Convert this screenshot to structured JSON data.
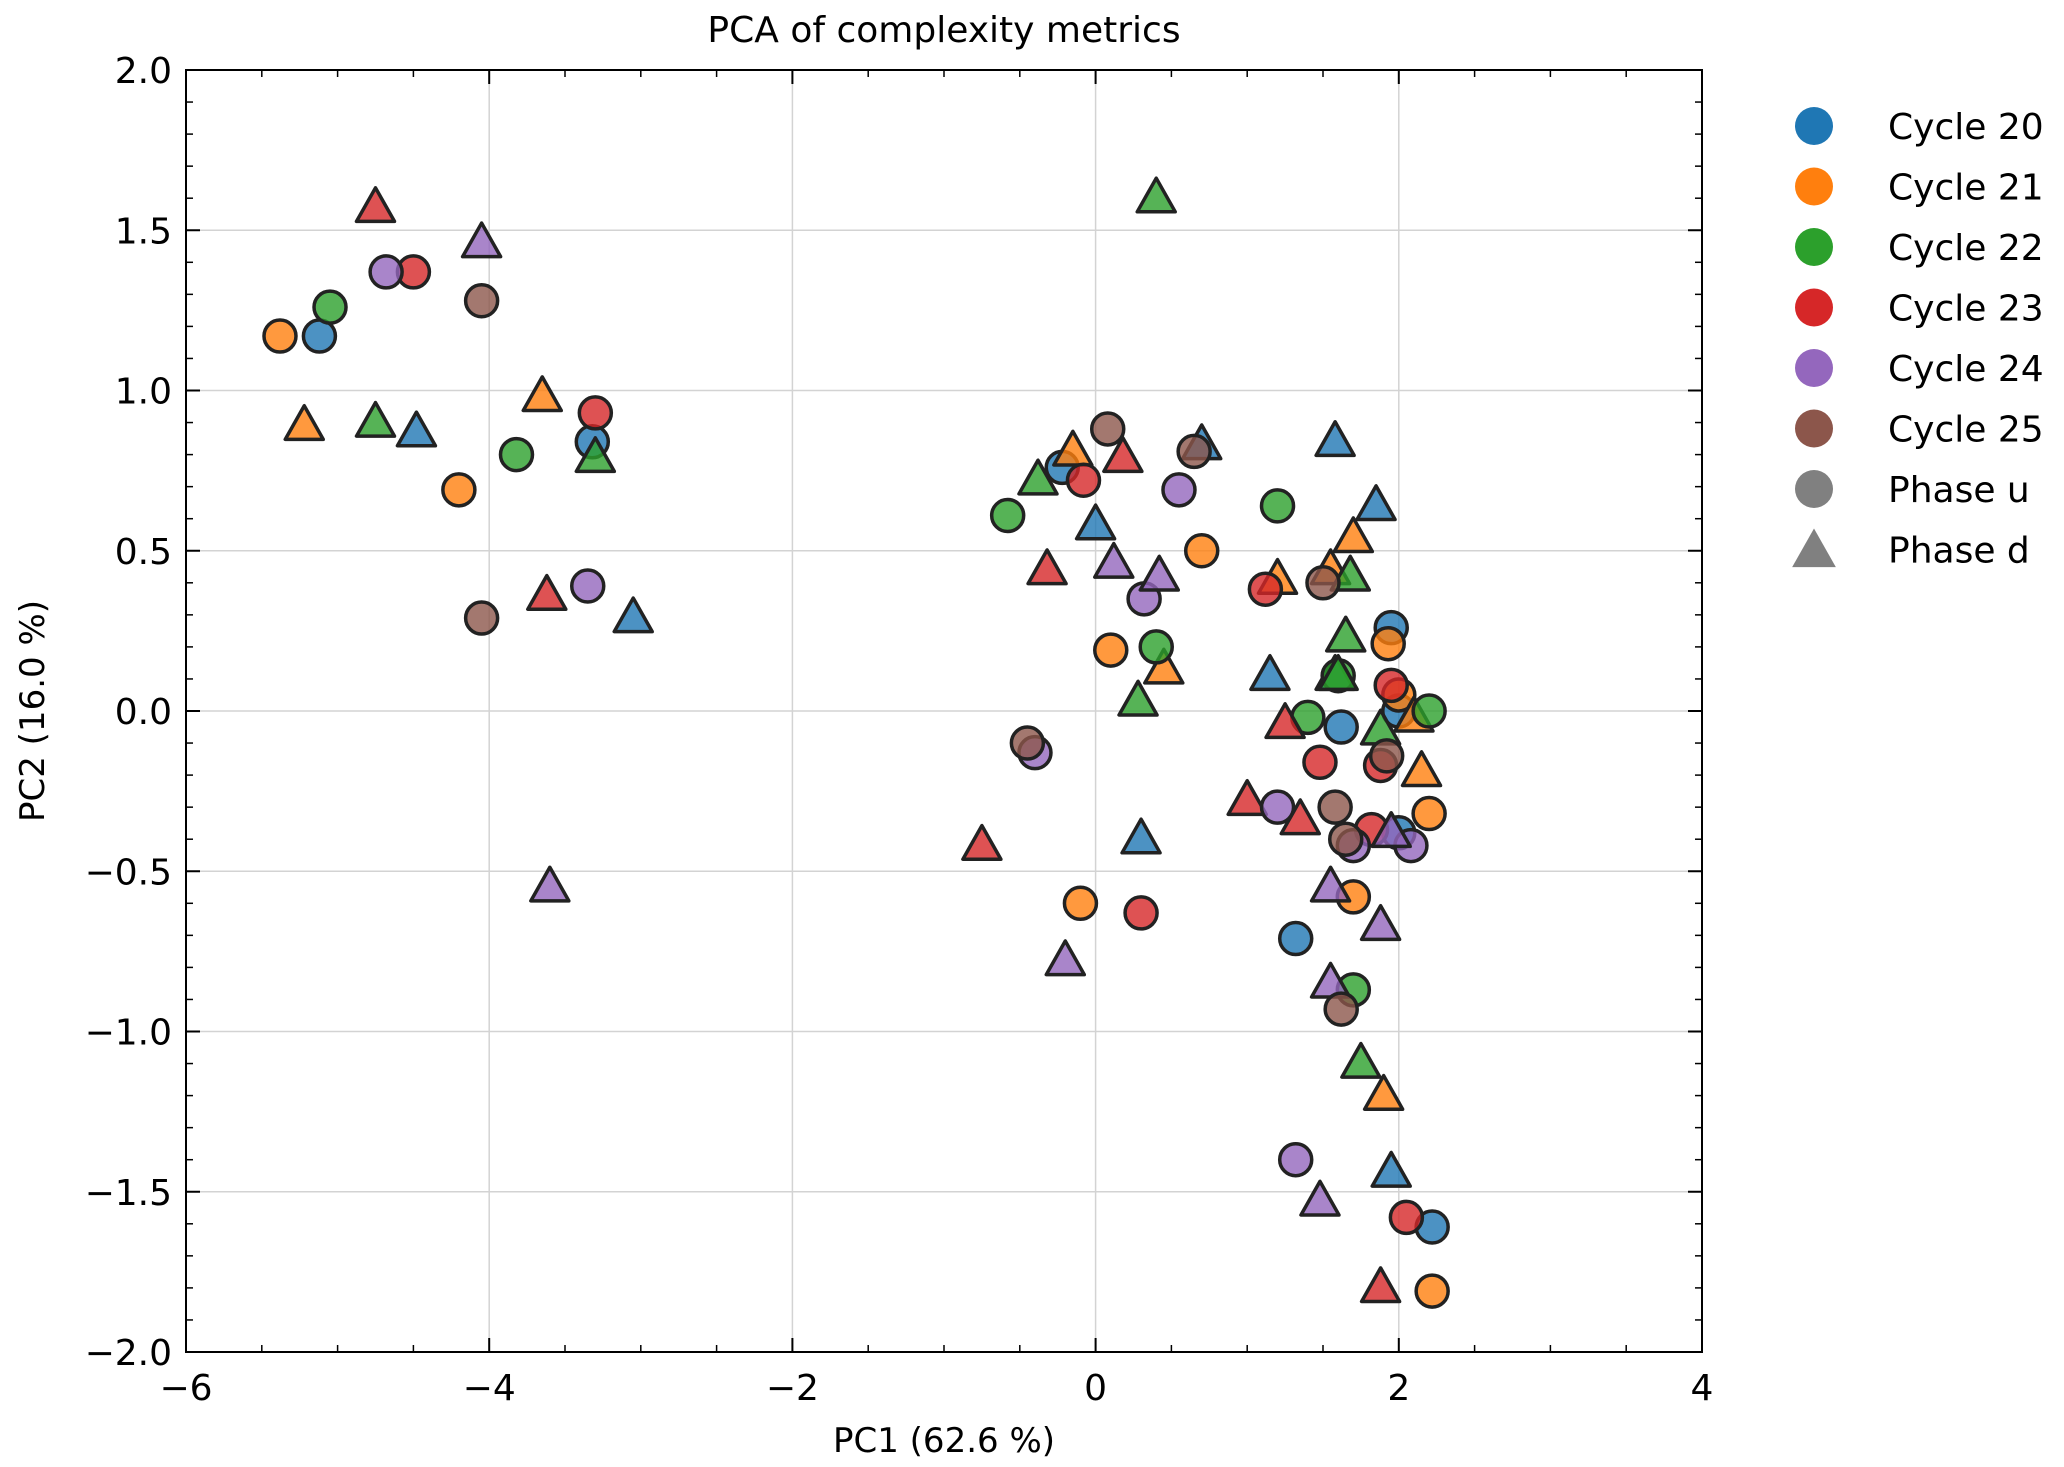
{
  "chart_data": {
    "type": "scatter",
    "title": "PCA of complexity metrics",
    "xlabel": "PC1 (62.6 %)",
    "ylabel": "PC2 (16.0 %)",
    "xlim": [
      -6,
      4
    ],
    "ylim": [
      -2.0,
      2.0
    ],
    "xticks": [
      -6,
      -4,
      -2,
      0,
      2,
      4
    ],
    "xtick_labels": [
      "−6",
      "−4",
      "−2",
      "0",
      "2",
      "4"
    ],
    "yticks": [
      -2.0,
      -1.5,
      -1.0,
      -0.5,
      0.0,
      0.5,
      1.0,
      1.5,
      2.0
    ],
    "ytick_labels": [
      "−2.0",
      "−1.5",
      "−1.0",
      "−0.5",
      "0.0",
      "0.5",
      "1.0",
      "1.5",
      "2.0"
    ],
    "grid": true,
    "legend_position": "outside-right",
    "legend": {
      "cycles": [
        {
          "label": "Cycle 20",
          "color": "#1f77b4"
        },
        {
          "label": "Cycle 21",
          "color": "#ff7f0e"
        },
        {
          "label": "Cycle 22",
          "color": "#2ca02c"
        },
        {
          "label": "Cycle 23",
          "color": "#d62728"
        },
        {
          "label": "Cycle 24",
          "color": "#9467bd"
        },
        {
          "label": "Cycle 25",
          "color": "#8c564b"
        }
      ],
      "phases": [
        {
          "label": "Phase u",
          "marker": "circle",
          "color": "#808080"
        },
        {
          "label": "Phase d",
          "marker": "triangle",
          "color": "#808080"
        }
      ]
    },
    "series": [
      {
        "cycle": "Cycle 20",
        "phase": "u",
        "points": [
          [
            -5.12,
            1.17
          ],
          [
            -3.32,
            0.84
          ],
          [
            -0.22,
            0.76
          ],
          [
            1.95,
            0.26
          ],
          [
            2.0,
            0.0
          ],
          [
            1.62,
            -0.05
          ],
          [
            2.0,
            -0.38
          ],
          [
            1.32,
            -0.71
          ],
          [
            2.22,
            -1.61
          ]
        ]
      },
      {
        "cycle": "Cycle 20",
        "phase": "d",
        "points": [
          [
            -4.48,
            0.87
          ],
          [
            -3.05,
            0.29
          ],
          [
            0.0,
            0.58
          ],
          [
            0.7,
            0.83
          ],
          [
            1.58,
            0.84
          ],
          [
            1.85,
            0.64
          ],
          [
            1.15,
            0.11
          ],
          [
            1.58,
            0.11
          ],
          [
            0.3,
            -0.4
          ],
          [
            1.95,
            -1.44
          ]
        ]
      },
      {
        "cycle": "Cycle 21",
        "phase": "u",
        "points": [
          [
            -5.38,
            1.17
          ],
          [
            -4.2,
            0.69
          ],
          [
            0.7,
            0.5
          ],
          [
            0.1,
            0.19
          ],
          [
            1.93,
            0.21
          ],
          [
            2.0,
            0.05
          ],
          [
            2.2,
            -0.32
          ],
          [
            1.7,
            -0.58
          ],
          [
            -0.1,
            -0.6
          ],
          [
            2.22,
            -1.81
          ]
        ]
      },
      {
        "cycle": "Cycle 21",
        "phase": "d",
        "points": [
          [
            -5.22,
            0.89
          ],
          [
            -3.65,
            0.98
          ],
          [
            -0.15,
            0.81
          ],
          [
            1.2,
            0.41
          ],
          [
            1.55,
            0.44
          ],
          [
            1.7,
            0.54
          ],
          [
            0.45,
            0.13
          ],
          [
            2.1,
            -0.02
          ],
          [
            2.15,
            -0.19
          ],
          [
            1.9,
            -1.2
          ]
        ]
      },
      {
        "cycle": "Cycle 22",
        "phase": "u",
        "points": [
          [
            -5.05,
            1.26
          ],
          [
            -3.82,
            0.8
          ],
          [
            -0.58,
            0.61
          ],
          [
            1.2,
            0.64
          ],
          [
            0.4,
            0.2
          ],
          [
            1.6,
            0.11
          ],
          [
            1.4,
            -0.02
          ],
          [
            2.2,
            0.0
          ],
          [
            1.7,
            -0.87
          ]
        ]
      },
      {
        "cycle": "Cycle 22",
        "phase": "d",
        "points": [
          [
            -4.75,
            0.9
          ],
          [
            -3.3,
            0.79
          ],
          [
            -0.38,
            0.72
          ],
          [
            0.4,
            1.6
          ],
          [
            1.68,
            0.42
          ],
          [
            1.65,
            0.23
          ],
          [
            0.28,
            0.03
          ],
          [
            1.6,
            0.11
          ],
          [
            1.88,
            -0.06
          ],
          [
            1.75,
            -1.1
          ]
        ]
      },
      {
        "cycle": "Cycle 23",
        "phase": "u",
        "points": [
          [
            -4.5,
            1.37
          ],
          [
            -3.3,
            0.93
          ],
          [
            -0.08,
            0.72
          ],
          [
            1.12,
            0.38
          ],
          [
            1.95,
            0.08
          ],
          [
            1.48,
            -0.16
          ],
          [
            1.88,
            -0.17
          ],
          [
            1.82,
            -0.37
          ],
          [
            0.3,
            -0.63
          ],
          [
            2.05,
            -1.58
          ]
        ]
      },
      {
        "cycle": "Cycle 23",
        "phase": "d",
        "points": [
          [
            -4.75,
            1.57
          ],
          [
            -3.62,
            0.36
          ],
          [
            -0.32,
            0.44
          ],
          [
            0.18,
            0.79
          ],
          [
            1.25,
            -0.04
          ],
          [
            1.0,
            -0.28
          ],
          [
            1.35,
            -0.34
          ],
          [
            -0.75,
            -0.42
          ],
          [
            1.88,
            -1.8
          ]
        ]
      },
      {
        "cycle": "Cycle 24",
        "phase": "u",
        "points": [
          [
            -4.68,
            1.37
          ],
          [
            -3.35,
            0.39
          ],
          [
            0.55,
            0.69
          ],
          [
            0.32,
            0.35
          ],
          [
            -0.4,
            -0.13
          ],
          [
            1.2,
            -0.3
          ],
          [
            1.7,
            -0.42
          ],
          [
            2.08,
            -0.42
          ],
          [
            1.32,
            -1.4
          ]
        ]
      },
      {
        "cycle": "Cycle 24",
        "phase": "d",
        "points": [
          [
            -4.05,
            1.46
          ],
          [
            -3.6,
            -0.55
          ],
          [
            0.12,
            0.46
          ],
          [
            0.42,
            0.42
          ],
          [
            1.55,
            -0.55
          ],
          [
            1.88,
            -0.67
          ],
          [
            1.55,
            -0.85
          ],
          [
            -0.2,
            -0.78
          ],
          [
            1.95,
            -0.38
          ],
          [
            1.48,
            -1.53
          ]
        ]
      },
      {
        "cycle": "Cycle 25",
        "phase": "u",
        "points": [
          [
            -4.05,
            1.28
          ],
          [
            -4.05,
            0.29
          ],
          [
            0.08,
            0.88
          ],
          [
            0.65,
            0.81
          ],
          [
            1.5,
            0.4
          ],
          [
            1.92,
            -0.14
          ],
          [
            1.58,
            -0.3
          ],
          [
            1.65,
            -0.4
          ],
          [
            -0.45,
            -0.1
          ],
          [
            1.62,
            -0.93
          ]
        ]
      }
    ]
  }
}
